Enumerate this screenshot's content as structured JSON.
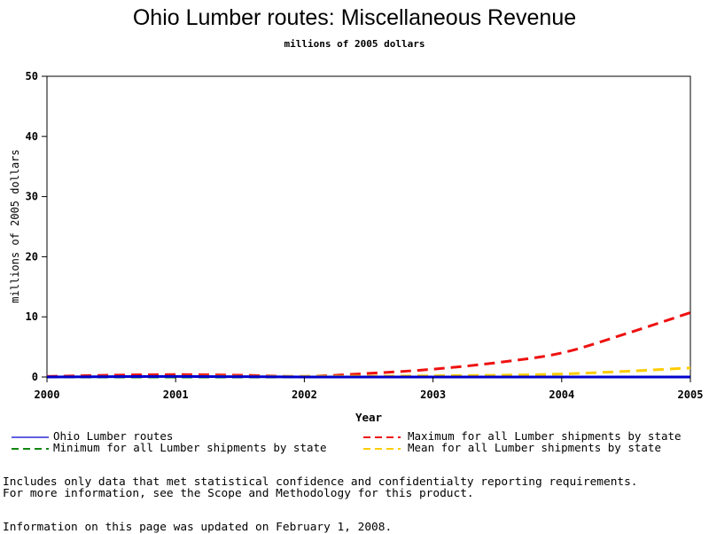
{
  "chart_data": {
    "type": "line",
    "title": "Ohio Lumber routes: Miscellaneous Revenue",
    "subtitle": "millions of 2005 dollars",
    "xlabel": "Year",
    "ylabel": "millions of 2005 dollars",
    "xlim": [
      2000,
      2005
    ],
    "ylim": [
      0,
      50
    ],
    "x_ticks": [
      "2000",
      "2001",
      "2002",
      "2003",
      "2004",
      "2005"
    ],
    "y_ticks": [
      "0",
      "10",
      "20",
      "30",
      "40",
      "50"
    ],
    "grid": false,
    "legend_position": "bottom",
    "series": [
      {
        "name": "Ohio Lumber routes",
        "color": "#0000cc",
        "style": "solid",
        "x": [
          2000,
          2001,
          2002,
          2003,
          2004,
          2005
        ],
        "y": [
          0.0,
          0.1,
          0.0,
          0.0,
          0.0,
          0.0
        ]
      },
      {
        "name": "Maximum for all Lumber shipments by state",
        "color": "#ee1111",
        "style": "dashed",
        "x": [
          2000,
          2000.5,
          2001,
          2001.5,
          2002,
          2002.5,
          2003,
          2003.5,
          2004,
          2004.5,
          2005
        ],
        "y": [
          0.1,
          0.3,
          0.4,
          0.3,
          0.1,
          0.6,
          1.3,
          2.4,
          4.0,
          7.2,
          10.7
        ]
      },
      {
        "name": "Minimum for all Lumber shipments by state",
        "color": "#118811",
        "style": "dashed",
        "x": [
          2000,
          2001,
          2002,
          2003,
          2004,
          2005
        ],
        "y": [
          0.0,
          0.0,
          0.0,
          0.0,
          0.0,
          0.0
        ]
      },
      {
        "name": "Mean for all Lumber shipments by state",
        "color": "#ffcc00",
        "style": "dashed",
        "x": [
          2000,
          2001,
          2002,
          2003,
          2004,
          2005
        ],
        "y": [
          0.0,
          0.1,
          0.1,
          0.2,
          0.5,
          1.5
        ]
      }
    ]
  },
  "notes": {
    "line1": "Includes only data that met statistical confidence and confidentialty reporting requirements.",
    "line2": "For more information, see the Scope and Methodology for this product.",
    "line3": "Information on this page was updated on February 1, 2008."
  }
}
